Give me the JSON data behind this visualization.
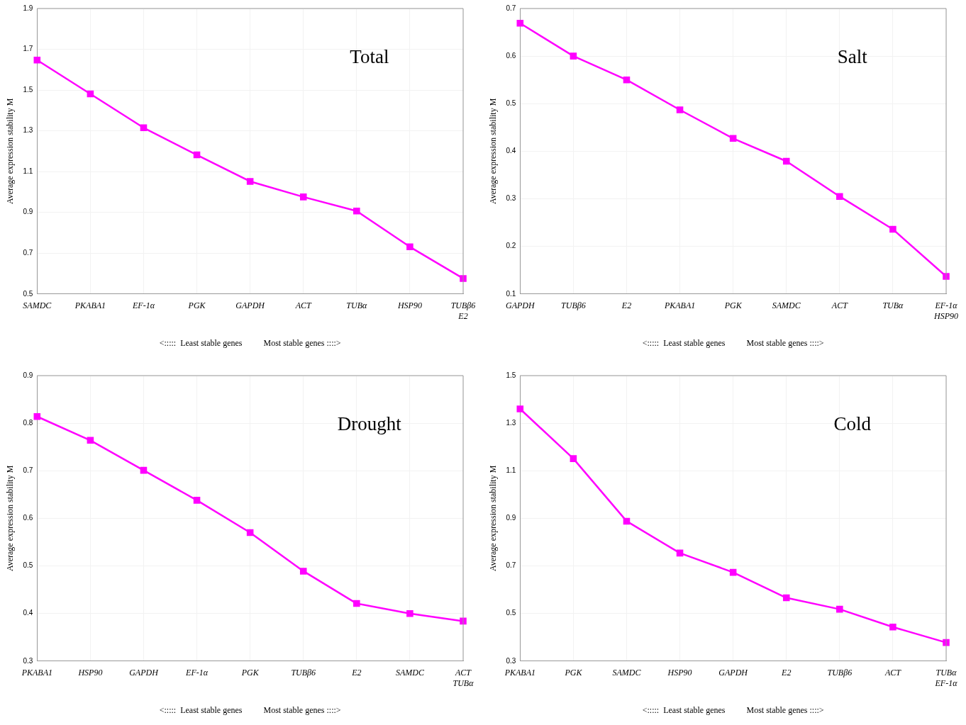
{
  "chart_data": [
    {
      "type": "line",
      "title": "Total",
      "ylabel": "Average expression stability M",
      "xlabel": "<:::::  Least stable genes          Most stable genes ::::>",
      "categories": [
        "SAMDC",
        "PKABA1",
        "EF-1α",
        "PGK",
        "GAPDH",
        "ACT",
        "TUBα",
        "HSP90",
        "TUBβ6\nE2"
      ],
      "series": [
        {
          "color": "#ff00ff",
          "values": [
            1.647,
            1.481,
            1.315,
            1.182,
            1.052,
            0.976,
            0.907,
            0.731,
            0.576
          ]
        }
      ],
      "ylim": [
        0.5,
        1.9
      ],
      "yticks": [
        0.5,
        0.7,
        0.9,
        1.1,
        1.3,
        1.5,
        1.7,
        1.9
      ],
      "grid": true,
      "marker": "square",
      "line_style": "solid"
    },
    {
      "type": "line",
      "title": "Salt",
      "ylabel": "Average expression stability M",
      "xlabel": "<:::::  Least stable genes          Most stable genes ::::>",
      "categories": [
        "GAPDH",
        "TUBβ6",
        "E2",
        "PKABA1",
        "PGK",
        "SAMDC",
        "ACT",
        "TUBα",
        "EF-1α\nHSP90"
      ],
      "series": [
        {
          "color": "#ff00ff",
          "values": [
            0.669,
            0.6,
            0.55,
            0.487,
            0.427,
            0.379,
            0.305,
            0.236,
            0.137
          ]
        }
      ],
      "ylim": [
        0.1,
        0.7
      ],
      "yticks": [
        0.1,
        0.2,
        0.3,
        0.4,
        0.5,
        0.6,
        0.7
      ],
      "grid": true,
      "marker": "square",
      "line_style": "solid"
    },
    {
      "type": "line",
      "title": "Drought",
      "ylabel": "Average expression stability M",
      "xlabel": "<:::::  Least stable genes          Most stable genes ::::>",
      "categories": [
        "PKABA1",
        "HSP90",
        "GAPDH",
        "EF-1α",
        "PGK",
        "TUBβ6",
        "E2",
        "SAMDC",
        "ACT\nTUBα"
      ],
      "series": [
        {
          "color": "#ff00ff",
          "values": [
            0.814,
            0.764,
            0.701,
            0.638,
            0.57,
            0.489,
            0.421,
            0.4,
            0.384
          ]
        }
      ],
      "ylim": [
        0.3,
        0.9
      ],
      "yticks": [
        0.3,
        0.4,
        0.5,
        0.6,
        0.7,
        0.8,
        0.9
      ],
      "grid": true,
      "marker": "square",
      "line_style": "solid"
    },
    {
      "type": "line",
      "title": "Cold",
      "ylabel": "Average expression stability M",
      "xlabel": "<:::::  Least stable genes          Most stable genes ::::>",
      "categories": [
        "PKABA1",
        "PGK",
        "SAMDC",
        "HSP90",
        "GAPDH",
        "E2",
        "TUBβ6",
        "ACT",
        "TUBα\nEF-1α"
      ],
      "series": [
        {
          "color": "#ff00ff",
          "values": [
            1.36,
            1.151,
            0.888,
            0.754,
            0.673,
            0.566,
            0.518,
            0.443,
            0.378
          ]
        }
      ],
      "ylim": [
        0.3,
        1.5
      ],
      "yticks": [
        0.3,
        0.5,
        0.7,
        0.9,
        1.1,
        1.3,
        1.5
      ],
      "grid": true,
      "marker": "square",
      "line_style": "solid"
    }
  ]
}
